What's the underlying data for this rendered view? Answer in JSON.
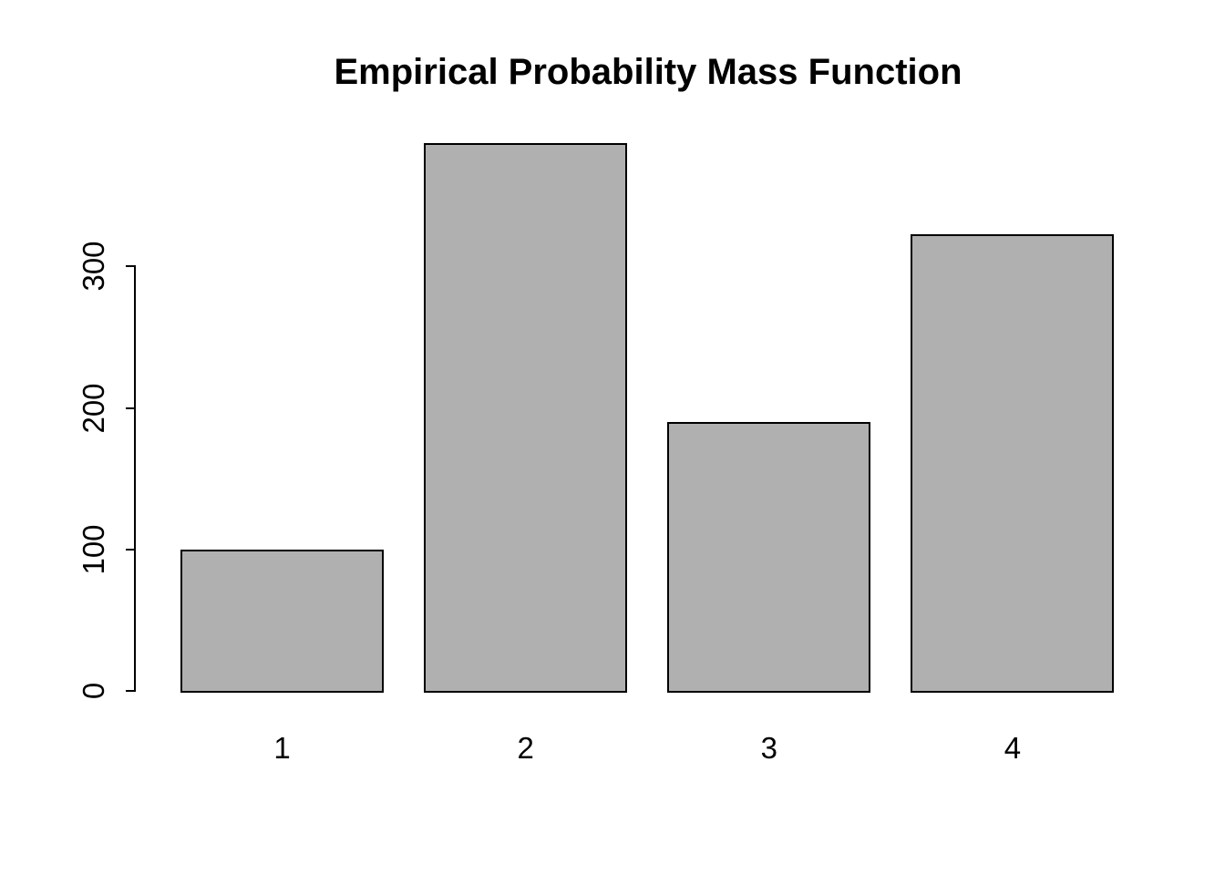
{
  "chart_data": {
    "type": "bar",
    "title": "Empirical Probability Mass Function",
    "categories": [
      "1",
      "2",
      "3",
      "4"
    ],
    "values": [
      100,
      387,
      190,
      323
    ],
    "xlabel": "",
    "ylabel": "",
    "yticks": [
      0,
      100,
      200,
      300
    ],
    "ylim": [
      0,
      390
    ],
    "grid": false,
    "legend_position": "none",
    "bar_fill_color": "#b0b0b0",
    "bar_border_color": "#000000",
    "axis_color": "#000000",
    "text_color": "#000000",
    "background_color": "#ffffff"
  }
}
